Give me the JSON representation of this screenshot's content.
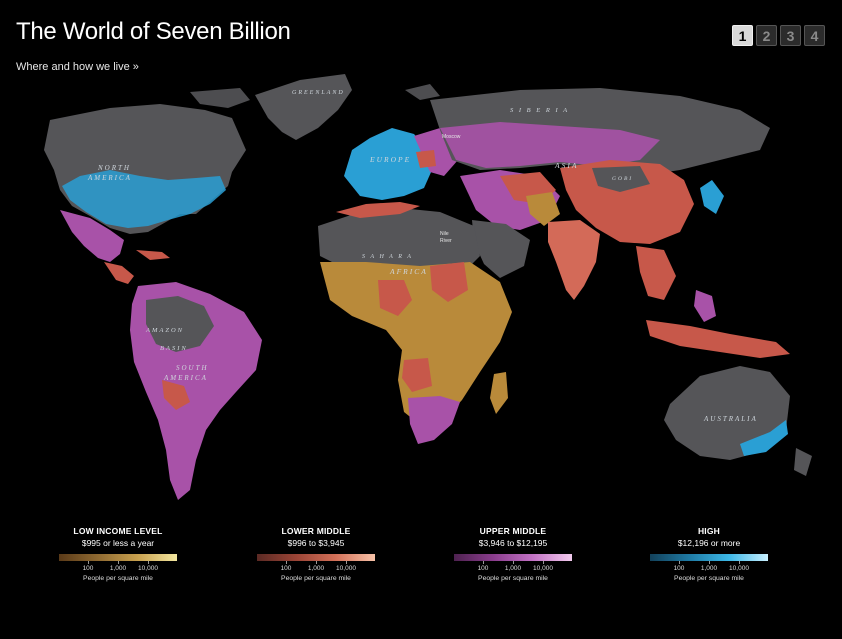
{
  "header": {
    "title": "The World of Seven Billion",
    "subtitle": "Where and how we live »"
  },
  "pager": {
    "pages": [
      "1",
      "2",
      "3",
      "4"
    ],
    "active": "1"
  },
  "map": {
    "labels": {
      "greenland": "GREENLAND",
      "siberia": "S I B E R I A",
      "north_america_1": "NORTH",
      "north_america_2": "AMERICA",
      "europe": "EUROPE",
      "asia": "ASIA",
      "gobi": "GOBI",
      "sahara": "S A H A R A",
      "africa": "AFRICA",
      "amazon": "AMAZON",
      "basin": "BASIN",
      "south_america_1": "SOUTH",
      "south_america_2": "AMERICA",
      "australia": "AUSTRALIA",
      "moscow": "Moscow",
      "nile_1": "Nile",
      "nile_2": "River"
    },
    "colors": {
      "ocean": "#000000",
      "unpopulated_land": "#555558",
      "low_income": "#b98a3a",
      "lower_middle": "#c7584a",
      "upper_middle": "#a852a8",
      "high": "#2a9fd4"
    }
  },
  "legend": [
    {
      "heading": "LOW INCOME LEVEL",
      "range": "$995 or less a year",
      "gradient": [
        "#5a3a18",
        "#8f6a32",
        "#c7a04e",
        "#f3e7a0"
      ],
      "ticks": [
        "100",
        "1,000",
        "10,000"
      ],
      "unit": "People per square mile"
    },
    {
      "heading": "LOWER MIDDLE",
      "range": "$996 to $3,945",
      "gradient": [
        "#5b2a24",
        "#9a4436",
        "#d27058",
        "#f7c2a8"
      ],
      "ticks": [
        "100",
        "1,000",
        "10,000"
      ],
      "unit": "People per square mile"
    },
    {
      "heading": "UPPER MIDDLE",
      "range": "$3,946 to $12,195",
      "gradient": [
        "#4e2250",
        "#8a3d8d",
        "#c272c4",
        "#f2cbee"
      ],
      "ticks": [
        "100",
        "1,000",
        "10,000"
      ],
      "unit": "People per square mile"
    },
    {
      "heading": "HIGH",
      "range": "$12,196 or more",
      "gradient": [
        "#13415a",
        "#1f7aa4",
        "#3cb7e6",
        "#c9f0ff"
      ],
      "ticks": [
        "100",
        "1,000",
        "10,000"
      ],
      "unit": "People per square mile"
    }
  ]
}
